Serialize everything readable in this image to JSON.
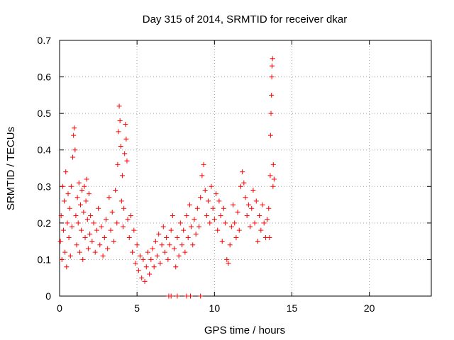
{
  "chart_data": {
    "type": "scatter",
    "title": "Day 315 of 2014, SRMTID for receiver dkar",
    "xlabel": "GPS time / hours",
    "ylabel": "SRMTID / TECUs",
    "xlim": [
      0,
      24
    ],
    "ylim": [
      0,
      0.7
    ],
    "xticks": [
      0,
      5,
      10,
      15,
      20
    ],
    "yticks": [
      0,
      0.1,
      0.2,
      0.3,
      0.4,
      0.5,
      0.6,
      0.7
    ],
    "xtick_labels": [
      "0",
      "5",
      "10",
      "15",
      "20"
    ],
    "ytick_labels": [
      "0",
      "0.1",
      "0.2",
      "0.3",
      "0.4",
      "0.5",
      "0.6",
      "0.7"
    ],
    "grid": true,
    "marker": "+",
    "color": "#ff0000",
    "series": [
      {
        "name": "SRMTID",
        "points": [
          [
            0.05,
            0.15
          ],
          [
            0.1,
            0.22
          ],
          [
            0.15,
            0.1
          ],
          [
            0.2,
            0.3
          ],
          [
            0.25,
            0.18
          ],
          [
            0.3,
            0.26
          ],
          [
            0.35,
            0.12
          ],
          [
            0.4,
            0.34
          ],
          [
            0.45,
            0.08
          ],
          [
            0.5,
            0.2
          ],
          [
            0.55,
            0.28
          ],
          [
            0.6,
            0.16
          ],
          [
            0.65,
            0.24
          ],
          [
            0.7,
            0.11
          ],
          [
            0.75,
            0.3
          ],
          [
            0.8,
            0.19
          ],
          [
            0.85,
            0.38
          ],
          [
            0.9,
            0.44
          ],
          [
            0.95,
            0.46
          ],
          [
            1.0,
            0.4
          ],
          [
            1.05,
            0.22
          ],
          [
            1.1,
            0.14
          ],
          [
            1.15,
            0.27
          ],
          [
            1.2,
            0.2
          ],
          [
            1.25,
            0.31
          ],
          [
            1.3,
            0.12
          ],
          [
            1.35,
            0.25
          ],
          [
            1.4,
            0.18
          ],
          [
            1.45,
            0.29
          ],
          [
            1.5,
            0.1
          ],
          [
            1.55,
            0.23
          ],
          [
            1.6,
            0.3
          ],
          [
            1.65,
            0.16
          ],
          [
            1.7,
            0.26
          ],
          [
            1.75,
            0.32
          ],
          [
            1.8,
            0.21
          ],
          [
            1.85,
            0.13
          ],
          [
            1.9,
            0.28
          ],
          [
            1.95,
            0.17
          ],
          [
            2.0,
            0.22
          ],
          [
            2.1,
            0.15
          ],
          [
            2.2,
            0.2
          ],
          [
            2.3,
            0.12
          ],
          [
            2.4,
            0.18
          ],
          [
            2.5,
            0.24
          ],
          [
            2.6,
            0.14
          ],
          [
            2.7,
            0.19
          ],
          [
            2.8,
            0.11
          ],
          [
            2.9,
            0.16
          ],
          [
            3.0,
            0.21
          ],
          [
            3.1,
            0.13
          ],
          [
            3.2,
            0.27
          ],
          [
            3.3,
            0.18
          ],
          [
            3.4,
            0.23
          ],
          [
            3.5,
            0.15
          ],
          [
            3.6,
            0.29
          ],
          [
            3.7,
            0.2
          ],
          [
            3.75,
            0.36
          ],
          [
            3.8,
            0.45
          ],
          [
            3.85,
            0.52
          ],
          [
            3.9,
            0.48
          ],
          [
            3.95,
            0.41
          ],
          [
            4.0,
            0.26
          ],
          [
            4.05,
            0.33
          ],
          [
            4.1,
            0.19
          ],
          [
            4.15,
            0.24
          ],
          [
            4.2,
            0.39
          ],
          [
            4.25,
            0.47
          ],
          [
            4.3,
            0.43
          ],
          [
            4.35,
            0.37
          ],
          [
            4.4,
            0.21
          ],
          [
            4.5,
            0.16
          ],
          [
            4.6,
            0.22
          ],
          [
            4.7,
            0.12
          ],
          [
            4.8,
            0.18
          ],
          [
            4.9,
            0.09
          ],
          [
            5.0,
            0.14
          ],
          [
            5.1,
            0.07
          ],
          [
            5.2,
            0.11
          ],
          [
            5.3,
            0.05
          ],
          [
            5.4,
            0.1
          ],
          [
            5.5,
            0.04
          ],
          [
            5.6,
            0.08
          ],
          [
            5.7,
            0.12
          ],
          [
            5.8,
            0.06
          ],
          [
            5.9,
            0.1
          ],
          [
            6.0,
            0.13
          ],
          [
            6.1,
            0.08
          ],
          [
            6.2,
            0.15
          ],
          [
            6.3,
            0.11
          ],
          [
            6.4,
            0.17
          ],
          [
            6.5,
            0.09
          ],
          [
            6.6,
            0.14
          ],
          [
            6.7,
            0.19
          ],
          [
            6.8,
            0.12
          ],
          [
            6.9,
            0.16
          ],
          [
            7.0,
            0.1
          ],
          [
            7.1,
            0.14
          ],
          [
            7.2,
            0.18
          ],
          [
            7.3,
            0.22
          ],
          [
            7.4,
            0.13
          ],
          [
            7.5,
            0.08
          ],
          [
            7.6,
            0.16
          ],
          [
            7.7,
            0.11
          ],
          [
            7.8,
            0.2
          ],
          [
            7.9,
            0.14
          ],
          [
            8.0,
            0.18
          ],
          [
            8.1,
            0.12
          ],
          [
            8.2,
            0.22
          ],
          [
            8.3,
            0.16
          ],
          [
            8.4,
            0.25
          ],
          [
            8.5,
            0.19
          ],
          [
            8.6,
            0.14
          ],
          [
            8.7,
            0.21
          ],
          [
            8.8,
            0.17
          ],
          [
            8.9,
            0.24
          ],
          [
            9.0,
            0.19
          ],
          [
            9.1,
            0.27
          ],
          [
            9.2,
            0.33
          ],
          [
            9.3,
            0.36
          ],
          [
            9.4,
            0.29
          ],
          [
            9.5,
            0.22
          ],
          [
            9.6,
            0.26
          ],
          [
            9.7,
            0.2
          ],
          [
            9.8,
            0.3
          ],
          [
            9.9,
            0.24
          ],
          [
            10.0,
            0.21
          ],
          [
            10.1,
            0.28
          ],
          [
            10.2,
            0.18
          ],
          [
            10.3,
            0.26
          ],
          [
            10.4,
            0.22
          ],
          [
            10.5,
            0.15
          ],
          [
            10.6,
            0.24
          ],
          [
            10.7,
            0.2
          ],
          [
            10.8,
            0.1
          ],
          [
            10.9,
            0.09
          ],
          [
            11.0,
            0.14
          ],
          [
            11.1,
            0.19
          ],
          [
            11.2,
            0.25
          ],
          [
            11.3,
            0.2
          ],
          [
            11.4,
            0.16
          ],
          [
            11.5,
            0.23
          ],
          [
            11.6,
            0.18
          ],
          [
            11.7,
            0.3
          ],
          [
            11.8,
            0.34
          ],
          [
            11.9,
            0.31
          ],
          [
            12.0,
            0.27
          ],
          [
            12.1,
            0.22
          ],
          [
            12.2,
            0.25
          ],
          [
            12.3,
            0.19
          ],
          [
            12.4,
            0.24
          ],
          [
            12.5,
            0.29
          ],
          [
            12.6,
            0.2
          ],
          [
            12.7,
            0.26
          ],
          [
            12.8,
            0.15
          ],
          [
            12.9,
            0.22
          ],
          [
            13.0,
            0.18
          ],
          [
            13.1,
            0.25
          ],
          [
            13.2,
            0.2
          ],
          [
            13.3,
            0.16
          ],
          [
            13.4,
            0.21
          ],
          [
            13.5,
            0.24
          ],
          [
            13.55,
            0.16
          ],
          [
            13.6,
            0.33
          ],
          [
            13.62,
            0.44
          ],
          [
            13.65,
            0.5
          ],
          [
            13.68,
            0.55
          ],
          [
            13.7,
            0.6
          ],
          [
            13.72,
            0.63
          ],
          [
            13.75,
            0.65
          ],
          [
            13.78,
            0.3
          ],
          [
            13.8,
            0.36
          ],
          [
            13.85,
            0.32
          ],
          [
            7.05,
            0.0
          ],
          [
            7.2,
            0.0
          ],
          [
            7.6,
            0.0
          ],
          [
            8.2,
            0.0
          ],
          [
            8.45,
            0.0
          ],
          [
            9.1,
            0.0
          ]
        ]
      }
    ]
  }
}
